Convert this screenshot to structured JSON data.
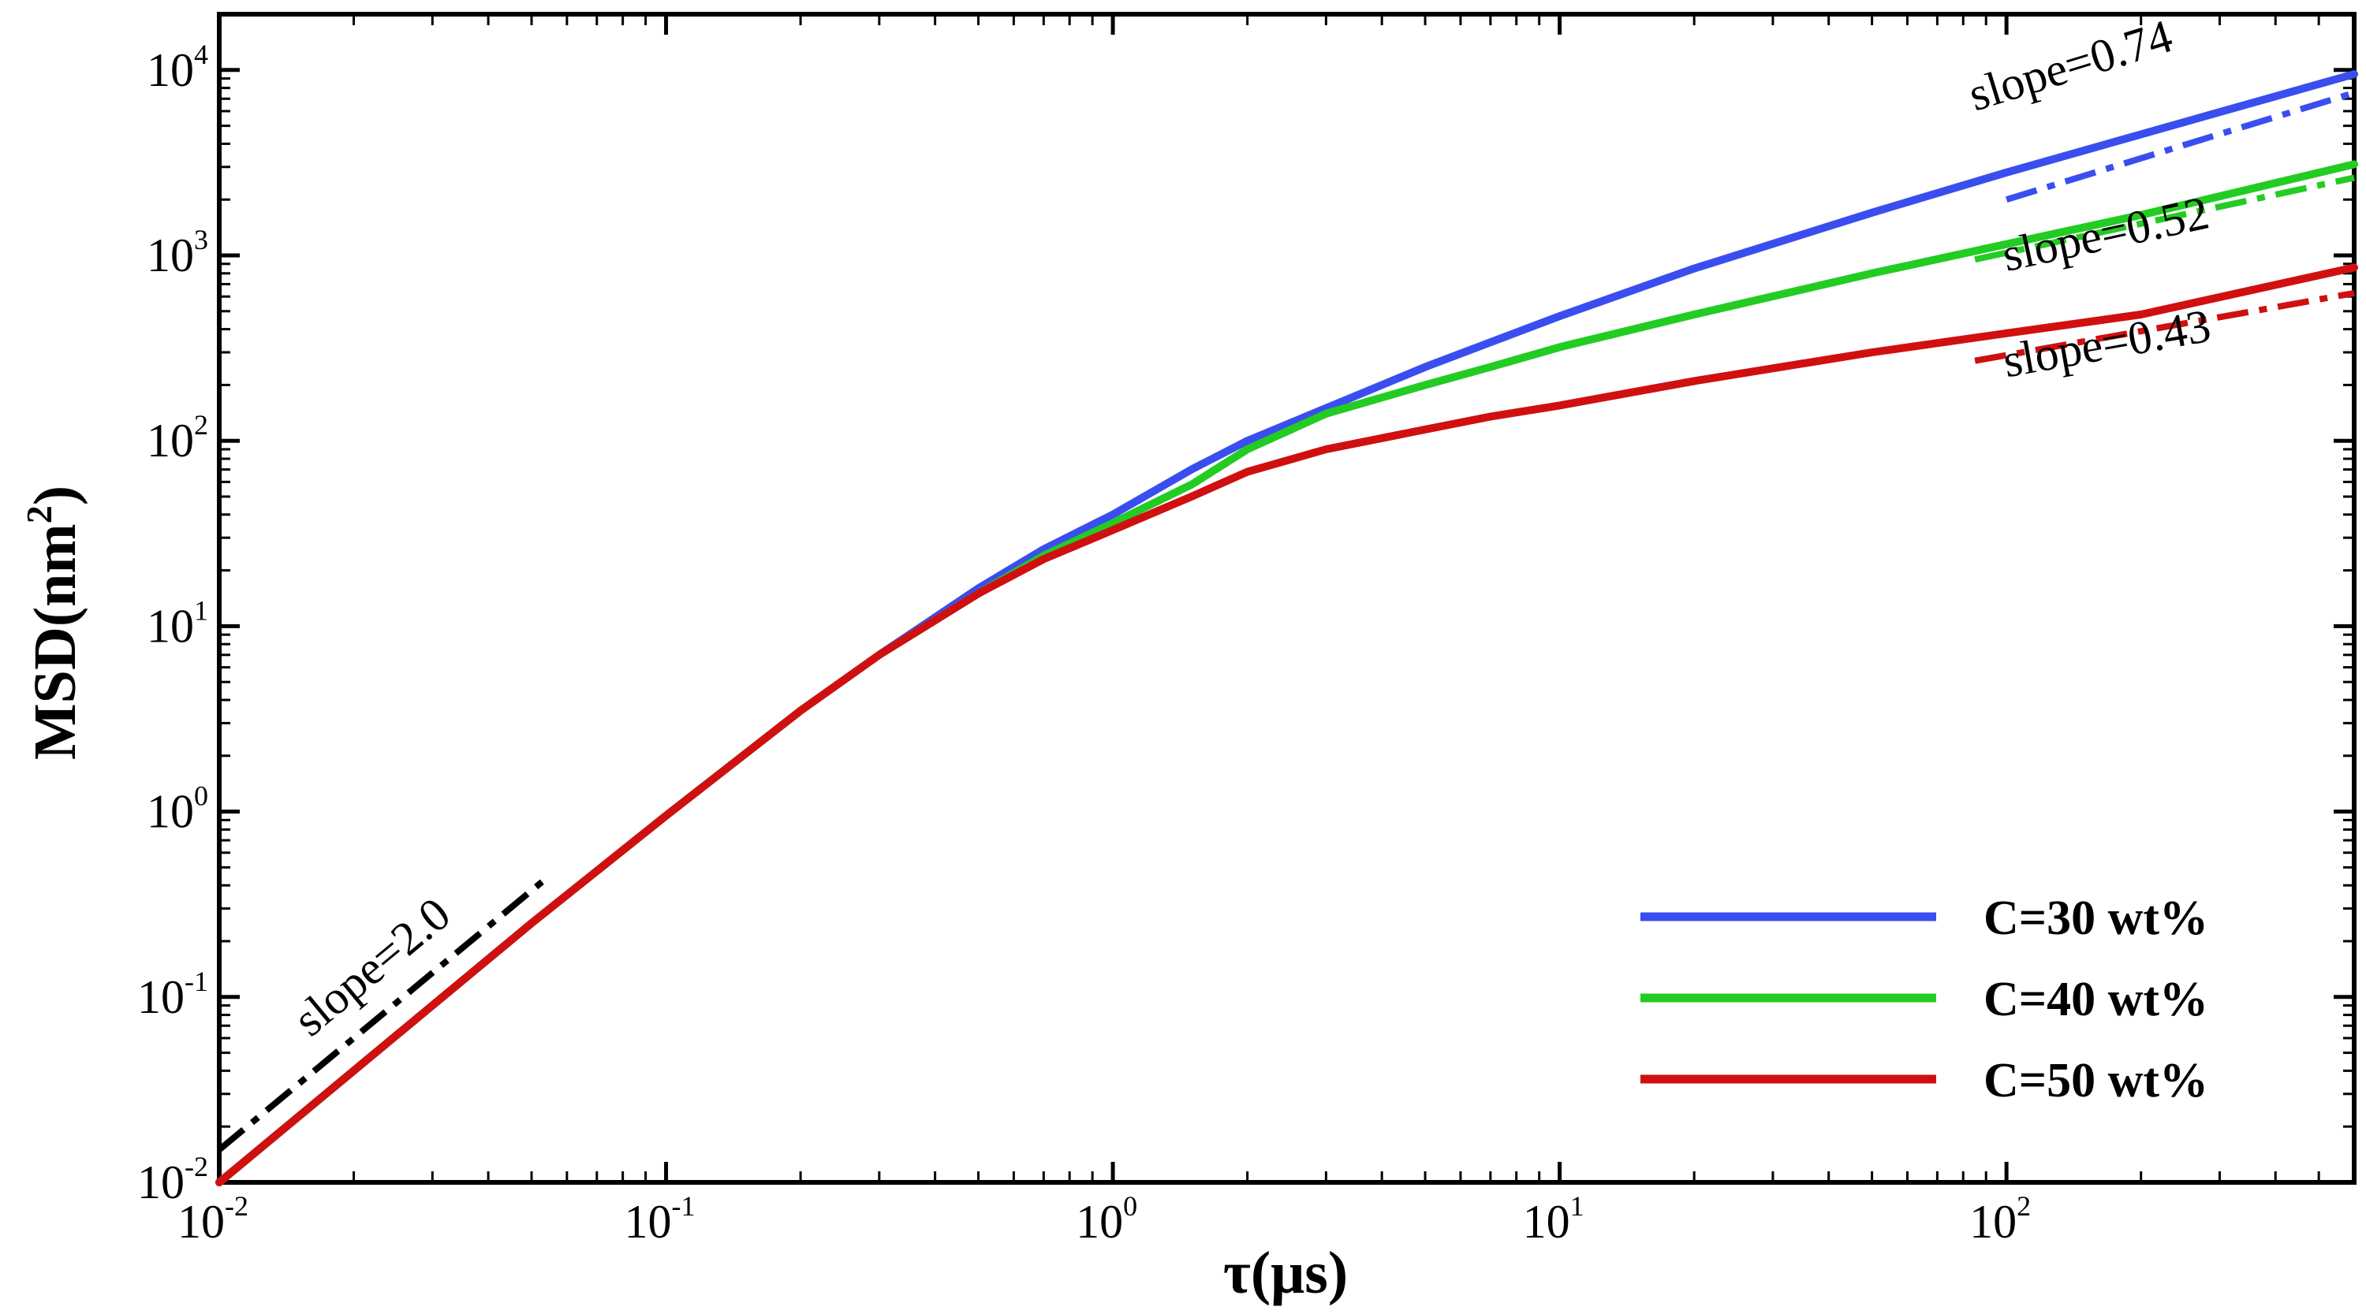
{
  "chart_data": {
    "type": "line",
    "title": "",
    "xlabel": "τ(μs)",
    "ylabel_main": "MSD(nm",
    "ylabel_sup": "2",
    "ylabel_close": ")",
    "xscale": "log",
    "yscale": "log",
    "xlim": [
      0.01,
      600
    ],
    "ylim": [
      0.01,
      20000
    ],
    "grid": false,
    "legend_position": "bottom-right",
    "x_ticks": [
      {
        "value": 0.01,
        "base": "10",
        "exp": "-2"
      },
      {
        "value": 0.1,
        "base": "10",
        "exp": "-1"
      },
      {
        "value": 1,
        "base": "10",
        "exp": "0"
      },
      {
        "value": 10,
        "base": "10",
        "exp": "1"
      },
      {
        "value": 100,
        "base": "10",
        "exp": "2"
      }
    ],
    "y_ticks": [
      {
        "value": 0.01,
        "base": "10",
        "exp": "-2"
      },
      {
        "value": 0.1,
        "base": "10",
        "exp": "-1"
      },
      {
        "value": 1,
        "base": "10",
        "exp": "0"
      },
      {
        "value": 10,
        "base": "10",
        "exp": "1"
      },
      {
        "value": 100,
        "base": "10",
        "exp": "2"
      },
      {
        "value": 1000,
        "base": "10",
        "exp": "3"
      },
      {
        "value": 10000,
        "base": "10",
        "exp": "4"
      }
    ],
    "series": [
      {
        "name": "C=30 wt%",
        "color": "#3a4ef0",
        "x": [
          0.01,
          0.02,
          0.05,
          0.1,
          0.2,
          0.3,
          0.5,
          0.7,
          1,
          1.5,
          2,
          3,
          5,
          7,
          10,
          20,
          50,
          100,
          200,
          600
        ],
        "y": [
          0.01,
          0.04,
          0.25,
          0.95,
          3.5,
          7,
          16,
          26,
          40,
          70,
          100,
          150,
          250,
          340,
          470,
          850,
          1700,
          2800,
          4500,
          9500
        ]
      },
      {
        "name": "C=40 wt%",
        "color": "#22cc22",
        "x": [
          0.01,
          0.02,
          0.05,
          0.1,
          0.2,
          0.3,
          0.5,
          0.7,
          1,
          1.5,
          2,
          3,
          5,
          7,
          10,
          20,
          50,
          100,
          200,
          600
        ],
        "y": [
          0.01,
          0.04,
          0.25,
          0.95,
          3.5,
          7,
          15,
          24,
          36,
          58,
          90,
          140,
          200,
          250,
          320,
          480,
          800,
          1150,
          1650,
          3100
        ]
      },
      {
        "name": "C=50 wt%",
        "color": "#d01010",
        "x": [
          0.01,
          0.02,
          0.05,
          0.1,
          0.2,
          0.3,
          0.5,
          0.7,
          1,
          1.5,
          2,
          3,
          5,
          7,
          10,
          20,
          50,
          100,
          200,
          600
        ],
        "y": [
          0.01,
          0.04,
          0.25,
          0.95,
          3.5,
          7,
          15,
          23,
          33,
          50,
          68,
          90,
          115,
          135,
          155,
          210,
          300,
          380,
          480,
          860
        ]
      }
    ],
    "reference_lines": [
      {
        "label": "slope=2.0",
        "color": "#000000",
        "slope": 2.0,
        "x_start": 0.01,
        "y_start": 0.015,
        "x_end": 0.055,
        "label_x": 0.016,
        "label_y": 0.06
      },
      {
        "label": "slope=0.74",
        "color": "#3a4ef0",
        "slope": 0.74,
        "x_start": 100,
        "y_start": 2000,
        "x_end": 600,
        "label_x": 85,
        "label_y": 6000
      },
      {
        "label": "slope=0.52",
        "color": "#22cc22",
        "slope": 0.52,
        "x_start": 85,
        "y_start": 950,
        "x_end": 600,
        "label_x": 100,
        "label_y": 820
      },
      {
        "label": "slope=0.43",
        "color": "#d01010",
        "slope": 0.43,
        "x_start": 85,
        "y_start": 270,
        "x_end": 600,
        "label_x": 100,
        "label_y": 220
      }
    ]
  }
}
